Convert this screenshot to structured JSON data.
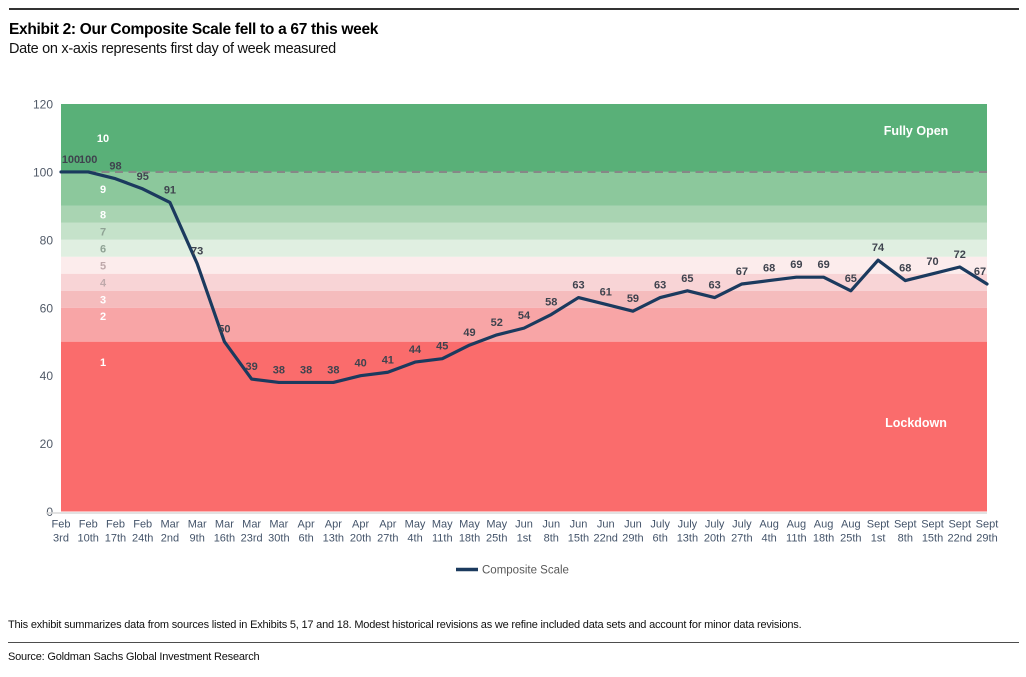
{
  "header": {
    "title": "Exhibit 2: Our Composite Scale fell to a 67 this week",
    "subtitle": "Date on x-axis represents first day of week measured"
  },
  "chart_data": {
    "type": "line",
    "title": "Exhibit 2: Our Composite Scale fell to a 67 this week",
    "categories": [
      "Feb 3rd",
      "Feb 10th",
      "Feb 17th",
      "Feb 24th",
      "Mar 2nd",
      "Mar 9th",
      "Mar 16th",
      "Mar 23rd",
      "Mar 30th",
      "Apr 6th",
      "Apr 13th",
      "Apr 20th",
      "Apr 27th",
      "May 4th",
      "May 11th",
      "May 18th",
      "May 25th",
      "Jun 1st",
      "Jun 8th",
      "Jun 15th",
      "Jun 22nd",
      "Jun 29th",
      "July 6th",
      "July 13th",
      "July 20th",
      "July 27th",
      "Aug 4th",
      "Aug 11th",
      "Aug 18th",
      "Aug 25th",
      "Sept 1st",
      "Sept 8th",
      "Sept 15th",
      "Sept 22nd",
      "Sept 29th"
    ],
    "series": [
      {
        "name": "Composite Scale",
        "color": "#1b3a5e",
        "values": [
          100,
          100,
          98,
          95,
          91,
          73,
          50,
          39,
          38,
          38,
          38,
          40,
          41,
          44,
          45,
          49,
          52,
          54,
          58,
          63,
          61,
          59,
          63,
          65,
          63,
          67,
          68,
          69,
          69,
          65,
          74,
          68,
          70,
          72,
          67
        ]
      }
    ],
    "ylim": [
      0,
      120
    ],
    "yticks": [
      0,
      20,
      40,
      60,
      80,
      100,
      120
    ],
    "grid": false,
    "legend_position": "bottom",
    "reference_line": {
      "value": 100,
      "style": "dashed",
      "color": "#878787"
    },
    "bands": [
      {
        "label": "10",
        "from": 100,
        "to": 120,
        "color": "#59b078",
        "label_color": "#ffffff",
        "label_value": 110
      },
      {
        "label": "9",
        "from": 90,
        "to": 100,
        "color": "#8cc89c",
        "label_color": "#ffffff",
        "label_value": 95
      },
      {
        "label": "8",
        "from": 85,
        "to": 90,
        "color": "#a9d4b2",
        "label_color": "#ffffff",
        "label_value": 87.5
      },
      {
        "label": "7",
        "from": 80,
        "to": 85,
        "color": "#c5e2ca",
        "label_color": "#8fa294",
        "label_value": 82.5
      },
      {
        "label": "6",
        "from": 75,
        "to": 80,
        "color": "#e0efe1",
        "label_color": "#8fa294",
        "label_value": 77.5
      },
      {
        "label": "5",
        "from": 70,
        "to": 75,
        "color": "#fcecec",
        "label_color": "#bfa9ab",
        "label_value": 72.5
      },
      {
        "label": "4",
        "from": 65,
        "to": 70,
        "color": "#f8d4d6",
        "label_color": "#bfa9ab",
        "label_value": 67.5
      },
      {
        "label": "3",
        "from": 60,
        "to": 65,
        "color": "#f5bcbd",
        "label_color": "#ffffff",
        "label_value": 62.5
      },
      {
        "label": "2",
        "from": 50,
        "to": 60,
        "color": "#f8a5a6",
        "label_color": "#ffffff",
        "label_value": 57.5
      },
      {
        "label": "1",
        "from": 0,
        "to": 50,
        "color": "#fa6c6c",
        "label_color": "#ffffff",
        "label_value": 44
      }
    ],
    "annotations": [
      {
        "id": "fully-open",
        "text": "Fully Open",
        "value": 112,
        "color": "#ffffff"
      },
      {
        "id": "lockdown",
        "text": "Lockdown",
        "value": 26,
        "color": "#ffffff"
      }
    ],
    "legend": {
      "label": "Composite Scale"
    }
  },
  "footer": {
    "note": "This exhibit summarizes data from sources listed in Exhibits 5, 17 and 18. Modest historical revisions as we refine included data sets and account for minor data revisions.",
    "source": "Source: Goldman Sachs Global Investment Research"
  }
}
